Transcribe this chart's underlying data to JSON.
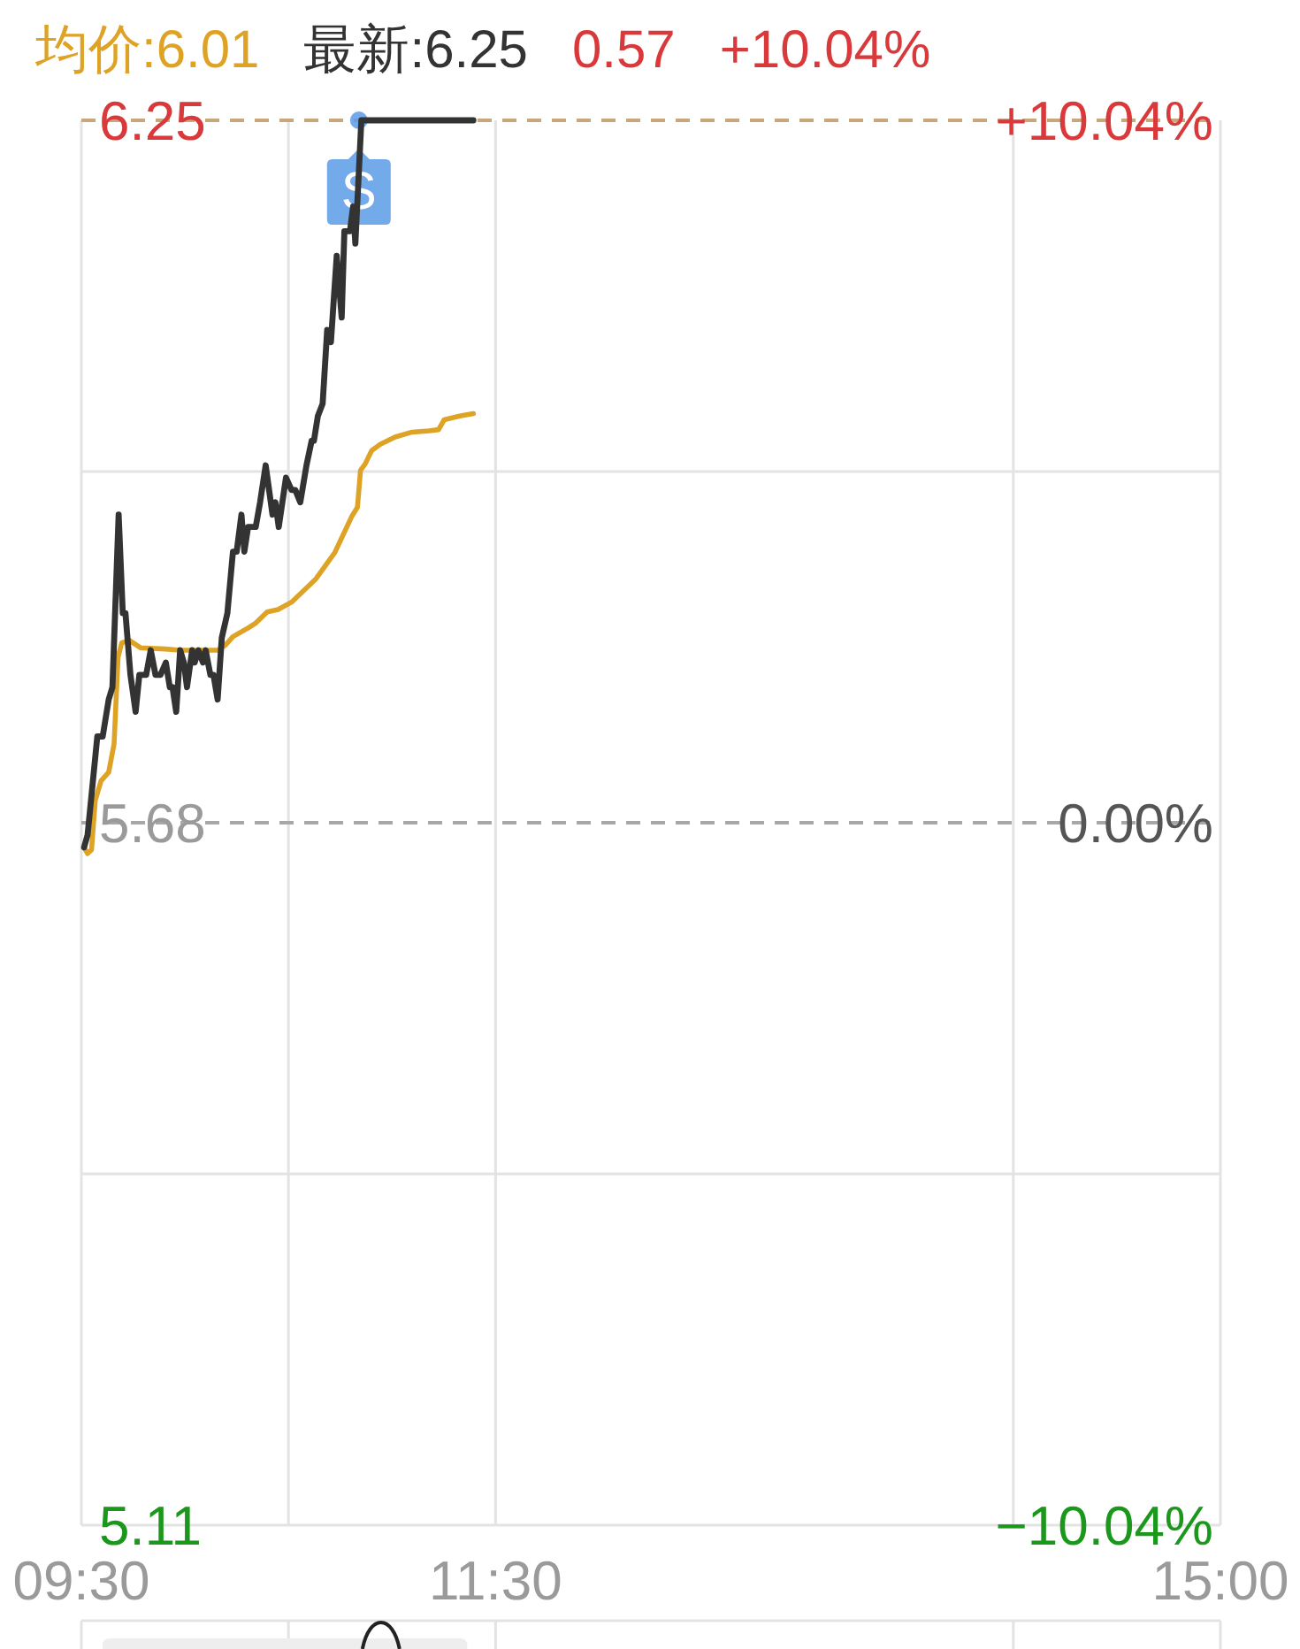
{
  "chart_data": {
    "type": "line",
    "series": [
      {
        "name": "均价:6.01",
        "color": "#dea225",
        "x": [
          9.513,
          9.53,
          9.549,
          9.567,
          9.595,
          9.632,
          9.658,
          9.677,
          9.695,
          9.732,
          9.785,
          9.905,
          9.977,
          10.158,
          10.195,
          10.232,
          10.305,
          10.342,
          10.397,
          10.45,
          10.515,
          10.633,
          10.723,
          10.807,
          10.833,
          10.848,
          10.87,
          10.902,
          10.943,
          11.015,
          11.097,
          11.18,
          11.225,
          11.252,
          11.327,
          11.393
        ],
        "values": [
          5.66,
          5.655,
          5.658,
          5.698,
          5.714,
          5.721,
          5.744,
          5.814,
          5.826,
          5.828,
          5.822,
          5.821,
          5.82,
          5.82,
          5.824,
          5.831,
          5.838,
          5.842,
          5.851,
          5.853,
          5.859,
          5.878,
          5.899,
          5.929,
          5.936,
          5.966,
          5.971,
          5.982,
          5.987,
          5.993,
          5.997,
          5.998,
          5.999,
          6.007,
          6.01,
          6.012
        ]
      },
      {
        "name": "最新:6.25",
        "color": "#333333",
        "x": [
          9.513,
          9.53,
          9.577,
          9.603,
          9.632,
          9.65,
          9.68,
          9.7,
          9.713,
          9.737,
          9.762,
          9.78,
          9.813,
          9.835,
          9.858,
          9.882,
          9.908,
          9.927,
          9.94,
          9.958,
          9.977,
          9.995,
          10.01,
          10.035,
          10.047,
          10.065,
          10.087,
          10.1,
          10.123,
          10.138,
          10.158,
          10.178,
          10.205,
          10.232,
          10.25,
          10.273,
          10.287,
          10.305,
          10.342,
          10.363,
          10.39,
          10.423,
          10.437,
          10.453,
          10.488,
          10.515,
          10.533,
          10.557,
          10.587,
          10.612,
          10.623,
          10.642,
          10.665,
          10.687,
          10.705,
          10.733,
          10.757,
          10.77,
          10.797,
          10.812,
          10.823,
          10.852,
          11.393
        ],
        "values": [
          5.66,
          5.67,
          5.75,
          5.75,
          5.78,
          5.79,
          5.93,
          5.85,
          5.85,
          5.8,
          5.77,
          5.8,
          5.8,
          5.82,
          5.8,
          5.8,
          5.81,
          5.79,
          5.79,
          5.77,
          5.82,
          5.81,
          5.79,
          5.82,
          5.81,
          5.82,
          5.81,
          5.82,
          5.8,
          5.8,
          5.78,
          5.83,
          5.85,
          5.9,
          5.9,
          5.93,
          5.9,
          5.92,
          5.92,
          5.94,
          5.97,
          5.93,
          5.94,
          5.92,
          5.96,
          5.95,
          5.95,
          5.94,
          5.97,
          5.99,
          5.99,
          6.01,
          6.02,
          6.08,
          6.07,
          6.14,
          6.09,
          6.16,
          6.16,
          6.18,
          6.15,
          6.25,
          6.25
        ]
      }
    ],
    "xlim": [
      9.5,
      15
    ],
    "xticks": [
      {
        "value": 9.5,
        "label": "09:30"
      },
      {
        "value": 10.5,
        "label": null
      },
      {
        "value": 11.5,
        "label": "11:30"
      },
      {
        "value": 14,
        "label": null
      },
      {
        "value": 15,
        "label": "15:00"
      }
    ],
    "ylim": [
      5.11,
      6.25
    ],
    "yticks": [
      6.25,
      {
        "value": 5.965,
        "label": null
      },
      5.68,
      {
        "value": 5.395,
        "label": null
      },
      5.11
    ],
    "y2lim": [
      -10.04,
      10.04
    ],
    "y2ticks": [
      {
        "value": 10.04,
        "label": "+10.04%"
      },
      {
        "value": 0,
        "label": "0.00%"
      },
      {
        "value": -10.04,
        "label": "−10.04%"
      }
    ],
    "ref_lines": [
      {
        "axis": "y",
        "value": 6.25,
        "color": "#c8a77c",
        "line_style": "dashed"
      },
      {
        "axis": "y",
        "value": 5.68,
        "color": "#a8a8a8",
        "line_style": "dashed"
      }
    ],
    "annotations": [
      "0.57",
      "+10.04%",
      {
        "text": "S",
        "x": 10.84,
        "y": 6.25
      }
    ],
    "grid": true,
    "legend": "top left"
  }
}
